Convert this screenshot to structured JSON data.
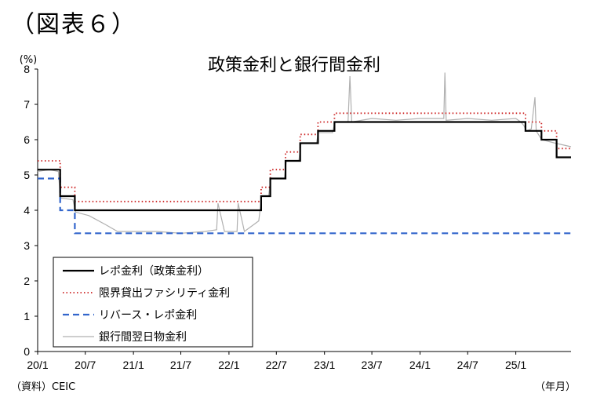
{
  "figure_label": "（図表６）",
  "source_note": "（資料）CEIC",
  "chart_data": {
    "type": "line",
    "title": "政策金利と銀行間金利",
    "ylabel": "(%)",
    "xlabel": "（年月）",
    "ylim": [
      0,
      8
    ],
    "yticks": [
      0,
      1,
      2,
      3,
      4,
      5,
      6,
      7,
      8
    ],
    "xlim": [
      "2020-01-01",
      "2025-07-31"
    ],
    "xticks": [
      {
        "label": "20/1",
        "date": "2020-01-01"
      },
      {
        "label": "20/7",
        "date": "2020-07-01"
      },
      {
        "label": "21/1",
        "date": "2021-01-01"
      },
      {
        "label": "21/7",
        "date": "2021-07-01"
      },
      {
        "label": "22/1",
        "date": "2022-01-01"
      },
      {
        "label": "22/7",
        "date": "2022-07-01"
      },
      {
        "label": "23/1",
        "date": "2023-01-01"
      },
      {
        "label": "23/7",
        "date": "2023-07-01"
      },
      {
        "label": "24/1",
        "date": "2024-01-01"
      },
      {
        "label": "24/7",
        "date": "2024-07-01"
      },
      {
        "label": "25/1",
        "date": "2025-01-01"
      }
    ],
    "grid": false,
    "legend_position": "bottom-left",
    "series": [
      {
        "name": "レポ金利（政策金利）",
        "color": "#000000",
        "style": "solid",
        "step": true,
        "x": [
          "2020-01-01",
          "2020-03-27",
          "2020-05-22",
          "2022-05-04",
          "2022-06-08",
          "2022-08-05",
          "2022-09-30",
          "2022-12-07",
          "2023-02-08",
          "2025-02-07",
          "2025-04-09",
          "2025-06-06",
          "2025-07-31"
        ],
        "y": [
          5.15,
          4.4,
          4.0,
          4.4,
          4.9,
          5.4,
          5.9,
          6.25,
          6.5,
          6.25,
          6.0,
          5.5,
          5.5
        ]
      },
      {
        "name": "限界貸出ファシリティ金利",
        "color": "#cc2222",
        "style": "dotted",
        "step": true,
        "x": [
          "2020-01-01",
          "2020-03-27",
          "2020-05-22",
          "2022-05-04",
          "2022-06-08",
          "2022-08-05",
          "2022-09-30",
          "2022-12-07",
          "2023-02-08",
          "2025-02-07",
          "2025-04-09",
          "2025-06-06",
          "2025-07-31"
        ],
        "y": [
          5.4,
          4.65,
          4.25,
          4.65,
          5.15,
          5.65,
          6.15,
          6.5,
          6.75,
          6.5,
          6.25,
          5.75,
          5.75
        ]
      },
      {
        "name": "リバース・レポ金利",
        "color": "#3366cc",
        "style": "dashed",
        "step": true,
        "x": [
          "2020-01-01",
          "2020-03-27",
          "2020-05-22",
          "2025-07-31"
        ],
        "y": [
          4.9,
          4.0,
          3.35,
          3.35
        ]
      },
      {
        "name": "銀行間翌日物金利",
        "color": "#b0b0b0",
        "style": "solid",
        "step": false,
        "x": [
          "2020-01-01",
          "2020-02-15",
          "2020-03-20",
          "2020-03-28",
          "2020-05-15",
          "2020-05-25",
          "2020-07-15",
          "2020-09-15",
          "2020-11-01",
          "2021-01-15",
          "2021-04-01",
          "2021-07-01",
          "2021-10-01",
          "2021-11-15",
          "2021-11-20",
          "2021-12-15",
          "2022-01-01",
          "2022-02-01",
          "2022-02-05",
          "2022-03-01",
          "2022-04-25",
          "2022-05-06",
          "2022-06-01",
          "2022-06-10",
          "2022-08-01",
          "2022-08-08",
          "2022-09-25",
          "2022-10-03",
          "2022-12-01",
          "2022-12-09",
          "2023-02-01",
          "2023-02-10",
          "2023-04-01",
          "2023-04-08",
          "2023-04-15",
          "2023-07-01",
          "2023-10-01",
          "2024-01-01",
          "2024-04-01",
          "2024-04-05",
          "2024-04-10",
          "2024-07-01",
          "2024-10-01",
          "2025-01-01",
          "2025-01-20",
          "2025-02-01",
          "2025-02-10",
          "2025-03-01",
          "2025-03-15",
          "2025-03-20",
          "2025-04-10",
          "2025-06-01",
          "2025-07-31"
        ],
        "y": [
          5.1,
          5.15,
          5.1,
          4.35,
          4.3,
          3.95,
          3.85,
          3.6,
          3.4,
          3.4,
          3.4,
          3.35,
          3.4,
          3.45,
          4.2,
          3.4,
          3.4,
          3.4,
          4.2,
          3.4,
          3.7,
          4.4,
          4.4,
          4.9,
          4.9,
          5.4,
          5.4,
          5.9,
          5.9,
          6.2,
          6.2,
          6.5,
          6.5,
          7.8,
          6.5,
          6.6,
          6.55,
          6.6,
          6.6,
          7.9,
          6.55,
          6.6,
          6.55,
          6.6,
          6.5,
          6.4,
          6.25,
          6.3,
          7.2,
          6.25,
          6.0,
          5.9,
          5.8
        ]
      }
    ]
  }
}
